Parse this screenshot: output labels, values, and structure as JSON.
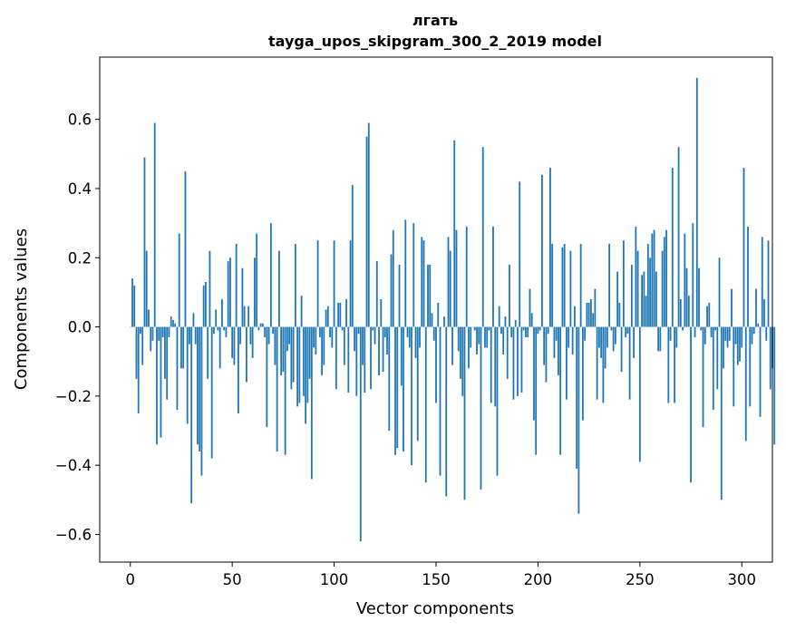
{
  "chart_data": {
    "type": "bar",
    "title_line1": "лгать",
    "title_line2": "tayga_upos_skipgram_300_2_2019 model",
    "xlabel": "Vector components",
    "ylabel": "Components values",
    "xlim": [
      -15,
      315
    ],
    "ylim": [
      -0.68,
      0.78
    ],
    "xticks": [
      0,
      50,
      100,
      150,
      200,
      250,
      300
    ],
    "xtick_labels": [
      "0",
      "50",
      "100",
      "150",
      "200",
      "250",
      "300"
    ],
    "yticks": [
      -0.6,
      -0.4,
      -0.2,
      0.0,
      0.2,
      0.4,
      0.6
    ],
    "ytick_labels": [
      "−0.6",
      "−0.4",
      "−0.2",
      "0.0",
      "0.2",
      "0.4",
      "0.6"
    ],
    "bar_color": "#1f77b4",
    "values": [
      0.0,
      0.14,
      0.12,
      -0.15,
      -0.25,
      -0.02,
      -0.11,
      0.49,
      0.22,
      0.05,
      -0.07,
      -0.04,
      0.59,
      -0.34,
      -0.04,
      -0.32,
      -0.03,
      -0.15,
      -0.21,
      -0.03,
      0.03,
      0.02,
      0.01,
      -0.24,
      0.27,
      -0.12,
      -0.12,
      0.45,
      -0.28,
      -0.05,
      -0.51,
      0.04,
      -0.05,
      -0.34,
      -0.36,
      -0.43,
      0.12,
      0.13,
      -0.15,
      0.22,
      -0.38,
      -0.02,
      0.05,
      -0.01,
      -0.12,
      0.08,
      -0.01,
      -0.03,
      0.19,
      0.2,
      -0.09,
      -0.11,
      0.24,
      -0.25,
      -0.05,
      0.17,
      0.06,
      -0.16,
      0.06,
      -0.05,
      -0.09,
      0.2,
      0.27,
      -0.01,
      0.01,
      0.01,
      -0.03,
      -0.29,
      -0.05,
      0.3,
      -0.02,
      -0.11,
      -0.36,
      0.22,
      -0.14,
      -0.13,
      -0.37,
      -0.07,
      -0.05,
      -0.18,
      -0.16,
      0.24,
      -0.23,
      -0.22,
      0.09,
      -0.2,
      -0.28,
      -0.22,
      -0.15,
      -0.44,
      -0.06,
      -0.08,
      0.25,
      -0.03,
      -0.14,
      -0.11,
      0.05,
      0.06,
      -0.03,
      -0.06,
      0.25,
      -0.18,
      0.07,
      0.07,
      -0.01,
      -0.11,
      0.08,
      -0.19,
      0.25,
      0.41,
      -0.07,
      -0.2,
      -0.02,
      -0.62,
      -0.11,
      -0.19,
      0.55,
      0.59,
      -0.18,
      -0.01,
      -0.05,
      0.19,
      -0.14,
      0.08,
      -0.13,
      -0.03,
      -0.08,
      -0.3,
      0.21,
      0.28,
      -0.37,
      -0.35,
      0.18,
      -0.17,
      -0.36,
      0.31,
      -0.03,
      -0.06,
      -0.4,
      0.3,
      -0.09,
      -0.33,
      -0.06,
      0.26,
      0.25,
      -0.45,
      0.18,
      0.18,
      0.04,
      -0.04,
      -0.22,
      0.07,
      -0.43,
      0.0,
      0.03,
      -0.49,
      0.26,
      0.22,
      -0.11,
      0.54,
      0.28,
      -0.07,
      -0.15,
      -0.2,
      -0.5,
      0.29,
      -0.12,
      -0.06,
      0.0,
      -0.01,
      -0.08,
      -0.05,
      -0.47,
      0.52,
      -0.06,
      -0.06,
      -0.01,
      -0.22,
      0.29,
      -0.23,
      -0.43,
      0.06,
      -0.02,
      -0.08,
      0.03,
      -0.15,
      0.18,
      -0.03,
      -0.21,
      0.02,
      -0.2,
      0.42,
      -0.19,
      -0.01,
      -0.03,
      -0.03,
      0.11,
      0.04,
      -0.27,
      -0.37,
      -0.02,
      -0.01,
      0.44,
      -0.11,
      -0.16,
      -0.02,
      0.46,
      0.24,
      -0.09,
      -0.04,
      -0.14,
      -0.37,
      0.23,
      0.24,
      -0.21,
      -0.06,
      0.22,
      -0.08,
      0.06,
      -0.41,
      -0.54,
      0.24,
      -0.27,
      -0.04,
      0.07,
      0.07,
      0.08,
      0.04,
      0.11,
      -0.21,
      -0.06,
      -0.09,
      -0.22,
      -0.12,
      -0.06,
      0.24,
      -0.01,
      -0.07,
      -0.05,
      0.16,
      0.07,
      -0.13,
      0.25,
      -0.03,
      -0.02,
      -0.21,
      0.18,
      -0.09,
      0.29,
      0.22,
      -0.39,
      0.15,
      0.16,
      0.09,
      0.24,
      0.2,
      0.27,
      0.28,
      0.16,
      -0.07,
      -0.07,
      0.22,
      0.26,
      0.28,
      -0.22,
      -0.04,
      0.46,
      -0.22,
      -0.06,
      0.52,
      0.08,
      -0.01,
      0.27,
      0.17,
      0.09,
      -0.45,
      0.3,
      -0.03,
      0.72,
      0.17,
      -0.01,
      -0.29,
      -0.05,
      0.06,
      0.07,
      -0.03,
      -0.24,
      -0.01,
      -0.18,
      0.2,
      -0.5,
      -0.12,
      -0.04,
      -0.06,
      -0.04,
      0.11,
      -0.23,
      -0.05,
      -0.11,
      -0.1,
      -0.06,
      0.46,
      -0.33,
      0.29,
      -0.23,
      -0.05,
      -0.02,
      0.11,
      0.01,
      -0.26,
      0.26,
      0.08,
      -0.04,
      0.25,
      -0.18,
      -0.12,
      -0.34
    ]
  }
}
